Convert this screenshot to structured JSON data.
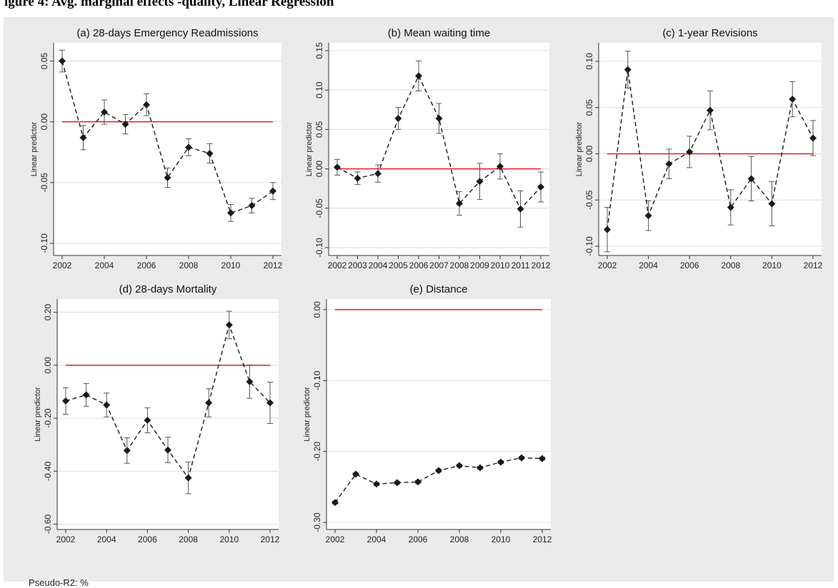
{
  "header": {
    "title": "igure 4: Avg. marginal effects -quality, Linear Regression"
  },
  "footnote": "Pseudo-R2: %",
  "colors": {
    "panel_bg": "#eaeaea",
    "plot_bg": "#ffffff",
    "grid": "#dcdcdc",
    "reference_line": "#e31a1c",
    "series": "#1a1a1a",
    "error_bar": "#555555"
  },
  "chart_data": [
    {
      "type": "line",
      "title": "(a) 28-days Emergency Readmissions",
      "ylabel": "Linear predictor",
      "xlabel": "",
      "x": [
        2002,
        2003,
        2004,
        2005,
        2006,
        2007,
        2008,
        2009,
        2010,
        2011,
        2012
      ],
      "y": [
        0.05,
        -0.013,
        0.008,
        -0.002,
        0.014,
        -0.046,
        -0.021,
        -0.026,
        -0.075,
        -0.069,
        -0.057
      ],
      "ci_low": [
        0.041,
        -0.023,
        -0.002,
        -0.01,
        0.005,
        -0.054,
        -0.028,
        -0.034,
        -0.082,
        -0.075,
        -0.064
      ],
      "ci_high": [
        0.059,
        -0.003,
        0.018,
        0.006,
        0.023,
        -0.038,
        -0.014,
        -0.018,
        -0.068,
        -0.063,
        -0.05
      ],
      "ylim": [
        -0.11,
        0.065
      ],
      "yticks": [
        0.05,
        0.0,
        -0.05,
        -0.1
      ],
      "ytick_labels": [
        "0.05",
        "0.00",
        "-0.05",
        "-0.10"
      ],
      "xticks": [
        2002,
        2004,
        2006,
        2008,
        2010,
        2012
      ],
      "xtick_labels": [
        "2002",
        "2004",
        "2006",
        "2008",
        "2010",
        "2012"
      ],
      "reference_line": 0,
      "grid": true,
      "error_bars": true
    },
    {
      "type": "line",
      "title": "(b) Mean waiting time",
      "ylabel": "Linear predictor",
      "xlabel": "",
      "x": [
        2002,
        2003,
        2004,
        2005,
        2006,
        2007,
        2008,
        2009,
        2010,
        2011,
        2012
      ],
      "y": [
        0.002,
        -0.012,
        -0.006,
        0.064,
        0.118,
        0.064,
        -0.044,
        -0.016,
        0.003,
        -0.051,
        -0.023
      ],
      "ci_low": [
        -0.008,
        -0.02,
        -0.017,
        0.05,
        0.099,
        0.045,
        -0.059,
        -0.039,
        -0.013,
        -0.074,
        -0.042
      ],
      "ci_high": [
        0.012,
        -0.004,
        0.005,
        0.078,
        0.137,
        0.083,
        -0.029,
        0.007,
        0.019,
        -0.028,
        -0.004
      ],
      "ylim": [
        -0.11,
        0.16
      ],
      "yticks": [
        0.15,
        0.1,
        0.05,
        0.0,
        -0.05,
        -0.1
      ],
      "ytick_labels": [
        "0.15",
        "0.10",
        "0.05",
        "0.00",
        "-0.05",
        "-0.10"
      ],
      "xticks": [
        2002,
        2003,
        2004,
        2005,
        2006,
        2007,
        2008,
        2009,
        2010,
        2011,
        2012
      ],
      "xtick_labels": [
        "2002",
        "2003",
        "2004",
        "2005",
        "2006",
        "2007",
        "2008",
        "2009",
        "2010",
        "2011",
        "2012"
      ],
      "reference_line": 0,
      "grid": true,
      "error_bars": true
    },
    {
      "type": "line",
      "title": "(c) 1-year Revisions",
      "ylabel": "Linear predictor",
      "xlabel": "",
      "x": [
        2002,
        2003,
        2004,
        2005,
        2006,
        2007,
        2008,
        2009,
        2010,
        2011,
        2012
      ],
      "y": [
        -0.082,
        0.091,
        -0.067,
        -0.011,
        0.002,
        0.047,
        -0.058,
        -0.027,
        -0.054,
        0.059,
        0.017
      ],
      "ci_low": [
        -0.106,
        0.071,
        -0.083,
        -0.027,
        -0.015,
        0.026,
        -0.077,
        -0.051,
        -0.078,
        0.04,
        -0.002
      ],
      "ci_high": [
        -0.058,
        0.111,
        -0.051,
        0.005,
        0.019,
        0.068,
        -0.039,
        -0.003,
        -0.03,
        0.078,
        0.036
      ],
      "ylim": [
        -0.11,
        0.12
      ],
      "yticks": [
        0.1,
        0.05,
        0.0,
        -0.05,
        -0.1
      ],
      "ytick_labels": [
        "0.10",
        "0.05",
        "0.00",
        "-0.05",
        "-0.10"
      ],
      "xticks": [
        2002,
        2004,
        2006,
        2008,
        2010,
        2012
      ],
      "xtick_labels": [
        "2002",
        "2004",
        "2006",
        "2008",
        "2010",
        "2012"
      ],
      "reference_line": 0,
      "grid": true,
      "error_bars": true
    },
    {
      "type": "line",
      "title": "(d) 28-days Mortality",
      "ylabel": "Linear predictor",
      "xlabel": "",
      "x": [
        2002,
        2003,
        2004,
        2005,
        2006,
        2007,
        2008,
        2009,
        2010,
        2011,
        2012
      ],
      "y": [
        -0.135,
        -0.112,
        -0.15,
        -0.322,
        -0.208,
        -0.32,
        -0.425,
        -0.142,
        0.152,
        -0.062,
        -0.142
      ],
      "ci_low": [
        -0.185,
        -0.155,
        -0.195,
        -0.37,
        -0.255,
        -0.368,
        -0.485,
        -0.195,
        0.1,
        -0.125,
        -0.22
      ],
      "ci_high": [
        -0.085,
        -0.069,
        -0.105,
        -0.274,
        -0.161,
        -0.272,
        -0.365,
        -0.089,
        0.204,
        0.001,
        -0.064
      ],
      "ylim": [
        -0.62,
        0.25
      ],
      "yticks": [
        0.2,
        0.0,
        -0.2,
        -0.4,
        -0.6
      ],
      "ytick_labels": [
        "0.20",
        "0.00",
        "-0.20",
        "-0.40",
        "-0.60"
      ],
      "xticks": [
        2002,
        2004,
        2006,
        2008,
        2010,
        2012
      ],
      "xtick_labels": [
        "2002",
        "2004",
        "2006",
        "2008",
        "2010",
        "2012"
      ],
      "reference_line": 0,
      "grid": true,
      "error_bars": true
    },
    {
      "type": "line",
      "title": "(e) Distance",
      "ylabel": "Linear predictor",
      "xlabel": "",
      "x": [
        2002,
        2003,
        2004,
        2005,
        2006,
        2007,
        2008,
        2009,
        2010,
        2011,
        2012
      ],
      "y": [
        -0.272,
        -0.232,
        -0.246,
        -0.244,
        -0.243,
        -0.227,
        -0.22,
        -0.223,
        -0.215,
        -0.209,
        -0.21
      ],
      "ci_low": [
        -0.274,
        -0.234,
        -0.248,
        -0.246,
        -0.245,
        -0.229,
        -0.222,
        -0.225,
        -0.217,
        -0.211,
        -0.212
      ],
      "ci_high": [
        -0.27,
        -0.23,
        -0.244,
        -0.242,
        -0.241,
        -0.225,
        -0.218,
        -0.221,
        -0.213,
        -0.207,
        -0.208
      ],
      "ylim": [
        -0.31,
        0.015
      ],
      "yticks": [
        0.0,
        -0.1,
        -0.2,
        -0.3
      ],
      "ytick_labels": [
        "0.00",
        "-0.10",
        "-0.20",
        "-0.30"
      ],
      "xticks": [
        2002,
        2004,
        2006,
        2008,
        2010,
        2012
      ],
      "xtick_labels": [
        "2002",
        "2004",
        "2006",
        "2008",
        "2010",
        "2012"
      ],
      "reference_line": 0,
      "grid": true,
      "error_bars": true
    }
  ]
}
